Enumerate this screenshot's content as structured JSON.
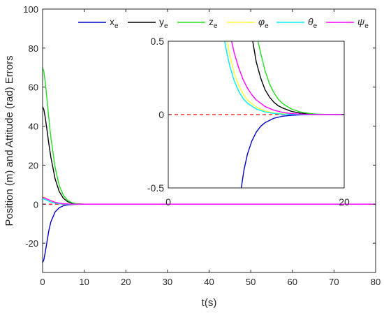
{
  "chart_data": [
    {
      "type": "line",
      "role": "main",
      "xlabel": "t(s)",
      "ylabel": "Position (m) and Attitude (rad) Errors",
      "xlim": [
        0,
        80
      ],
      "ylim": [
        -35,
        100
      ],
      "xticks": [
        0,
        10,
        20,
        30,
        40,
        50,
        60,
        70,
        80
      ],
      "yticks": [
        -20,
        0,
        20,
        40,
        60,
        80,
        100
      ],
      "grid": false,
      "legend_position": "top-right",
      "reference_line": {
        "y": 0,
        "color": "#ff0000",
        "style": "dashed"
      },
      "series": [
        {
          "name": "x",
          "sub": "e",
          "color": "#0000cc",
          "x": [
            0,
            0.3,
            0.6,
            1,
            1.5,
            2,
            3,
            4,
            5,
            6,
            7,
            8,
            10,
            15,
            80
          ],
          "y": [
            -30,
            -28.5,
            -25,
            -20,
            -13.5,
            -9,
            -4,
            -1.8,
            -0.8,
            -0.35,
            -0.15,
            -0.05,
            0,
            0,
            0
          ]
        },
        {
          "name": "y",
          "sub": "e",
          "color": "#000000",
          "x": [
            0,
            0.3,
            0.6,
            1,
            1.5,
            2,
            3,
            4,
            5,
            6,
            7,
            8,
            10,
            15,
            80
          ],
          "y": [
            50,
            48.5,
            45,
            39,
            31,
            24,
            13,
            6.5,
            3,
            1.3,
            0.5,
            0.2,
            0,
            0,
            0
          ]
        },
        {
          "name": "z",
          "sub": "e",
          "color": "#22dd22",
          "x": [
            0,
            0.3,
            0.6,
            1,
            1.5,
            2,
            3,
            4,
            5,
            6,
            7,
            8,
            10,
            15,
            80
          ],
          "y": [
            70,
            68,
            63,
            55,
            44,
            34,
            19,
            9.5,
            4.5,
            2,
            0.8,
            0.3,
            0,
            0,
            0
          ]
        },
        {
          "name": "φ",
          "sub": "e",
          "color": "#ffff33",
          "x": [
            0,
            0.5,
            1,
            2,
            3,
            4,
            5,
            6,
            8,
            10,
            80
          ],
          "y": [
            4,
            3.5,
            2.8,
            1.6,
            0.8,
            0.35,
            0.15,
            0.05,
            0,
            0,
            0
          ]
        },
        {
          "name": "θ",
          "sub": "e",
          "color": "#00eeee",
          "x": [
            0,
            0.5,
            1,
            2,
            3,
            4,
            5,
            6,
            8,
            10,
            80
          ],
          "y": [
            3,
            2.5,
            2,
            1.1,
            0.5,
            0.2,
            0.08,
            0.03,
            0,
            0,
            0
          ]
        },
        {
          "name": "ψ",
          "sub": "e",
          "color": "#ff00ff",
          "x": [
            0,
            0.5,
            1,
            2,
            3,
            4,
            5,
            6,
            8,
            10,
            80
          ],
          "y": [
            3.5,
            3.2,
            2.7,
            1.8,
            1.0,
            0.5,
            0.25,
            0.1,
            0.02,
            0,
            0
          ]
        }
      ]
    },
    {
      "type": "line",
      "role": "inset",
      "xlim": [
        0,
        20
      ],
      "ylim": [
        -0.5,
        0.5
      ],
      "xticks": [
        0,
        20
      ],
      "yticks": [
        -0.5,
        0,
        0.5
      ],
      "grid": false,
      "reference_line": {
        "y": 0,
        "color": "#ff0000",
        "style": "dashed"
      },
      "series": [
        {
          "name": "x",
          "sub": "e",
          "color": "#0000cc",
          "x": [
            8.3,
            8.6,
            9,
            9.5,
            10,
            10.5,
            11,
            12,
            13,
            14,
            15,
            17,
            20
          ],
          "y": [
            -0.5,
            -0.38,
            -0.27,
            -0.18,
            -0.12,
            -0.08,
            -0.055,
            -0.025,
            -0.011,
            -0.005,
            -0.002,
            0,
            0
          ]
        },
        {
          "name": "y",
          "sub": "e",
          "color": "#000000",
          "x": [
            9.6,
            10,
            10.5,
            11,
            11.5,
            12,
            12.5,
            13,
            14,
            15,
            16,
            17,
            18,
            20
          ],
          "y": [
            0.5,
            0.36,
            0.25,
            0.17,
            0.12,
            0.085,
            0.06,
            0.045,
            0.022,
            0.01,
            0.005,
            0.002,
            0,
            0
          ]
        },
        {
          "name": "z",
          "sub": "e",
          "color": "#22dd22",
          "x": [
            10.2,
            10.5,
            11,
            11.5,
            12,
            12.5,
            13,
            14,
            15,
            16,
            17,
            18,
            20
          ],
          "y": [
            0.5,
            0.42,
            0.3,
            0.21,
            0.15,
            0.105,
            0.075,
            0.038,
            0.018,
            0.008,
            0.003,
            0.001,
            0
          ]
        },
        {
          "name": "φ",
          "sub": "e",
          "color": "#ffff33",
          "x": [
            6.7,
            7,
            7.5,
            8,
            8.5,
            9,
            10,
            11,
            12,
            13,
            14,
            16,
            20
          ],
          "y": [
            0.5,
            0.4,
            0.28,
            0.2,
            0.14,
            0.1,
            0.05,
            0.024,
            0.011,
            0.005,
            0.002,
            0,
            0
          ]
        },
        {
          "name": "θ",
          "sub": "e",
          "color": "#00eeee",
          "x": [
            6.4,
            6.7,
            7,
            7.5,
            8,
            8.5,
            9,
            10,
            11,
            12,
            13,
            15,
            20
          ],
          "y": [
            0.5,
            0.41,
            0.33,
            0.23,
            0.16,
            0.11,
            0.078,
            0.038,
            0.018,
            0.008,
            0.003,
            0,
            0
          ]
        },
        {
          "name": "ψ",
          "sub": "e",
          "color": "#ff00ff",
          "x": [
            7.2,
            7.5,
            8,
            8.5,
            9,
            9.5,
            10,
            11,
            12,
            13,
            14,
            15,
            17,
            20
          ],
          "y": [
            0.5,
            0.42,
            0.32,
            0.24,
            0.18,
            0.135,
            0.1,
            0.055,
            0.03,
            0.015,
            0.007,
            0.003,
            0,
            0
          ]
        }
      ]
    }
  ]
}
